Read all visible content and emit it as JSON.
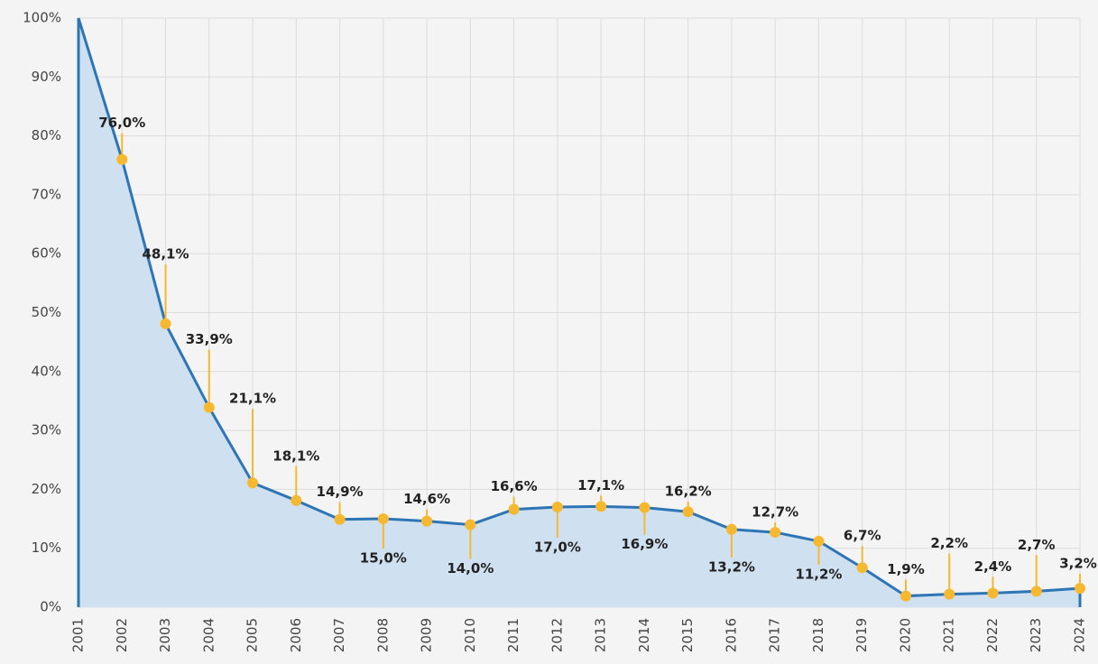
{
  "chart_data": {
    "type": "area",
    "x": [
      2001,
      2002,
      2003,
      2004,
      2005,
      2006,
      2007,
      2008,
      2009,
      2010,
      2011,
      2012,
      2013,
      2014,
      2015,
      2016,
      2017,
      2018,
      2019,
      2020,
      2021,
      2022,
      2023,
      2024
    ],
    "values": [
      100,
      76.0,
      48.1,
      33.9,
      21.1,
      18.1,
      14.9,
      15.0,
      14.6,
      14.0,
      16.6,
      17.0,
      17.1,
      16.9,
      16.2,
      13.2,
      12.7,
      11.2,
      6.7,
      1.9,
      2.2,
      2.4,
      2.7,
      3.2
    ],
    "value_labels": [
      null,
      "76,0%",
      "48,1%",
      "33,9%",
      "21,1%",
      "18,1%",
      "14,9%",
      "15,0%",
      "14,6%",
      "14,0%",
      "16,6%",
      "17,0%",
      "17,1%",
      "16,9%",
      "16,2%",
      "13,2%",
      "12,7%",
      "11,2%",
      "6,7%",
      "1,9%",
      "2,2%",
      "2,4%",
      "2,7%",
      "3,2%"
    ],
    "color": "#2e75b6",
    "fill_color": "#cfe0f0",
    "marker_color": "#f5b82e",
    "xlim": [
      2001,
      2024
    ],
    "xticks": [
      2001,
      2002,
      2003,
      2004,
      2005,
      2006,
      2007,
      2008,
      2009,
      2010,
      2011,
      2012,
      2013,
      2014,
      2015,
      2016,
      2017,
      2018,
      2019,
      2020,
      2021,
      2022,
      2023,
      2024
    ],
    "ylim": [
      0,
      100
    ],
    "yticks": [
      {
        "value": 0,
        "label": "0%"
      },
      {
        "value": 10,
        "label": "10%"
      },
      {
        "value": 20,
        "label": "20%"
      },
      {
        "value": 30,
        "label": "30%"
      },
      {
        "value": 40,
        "label": "40%"
      },
      {
        "value": 50,
        "label": "50%"
      },
      {
        "value": 60,
        "label": "60%"
      },
      {
        "value": 70,
        "label": "70%"
      },
      {
        "value": 80,
        "label": "80%"
      },
      {
        "value": 90,
        "label": "90%"
      },
      {
        "value": 100,
        "label": "100%"
      }
    ],
    "grid": true
  }
}
